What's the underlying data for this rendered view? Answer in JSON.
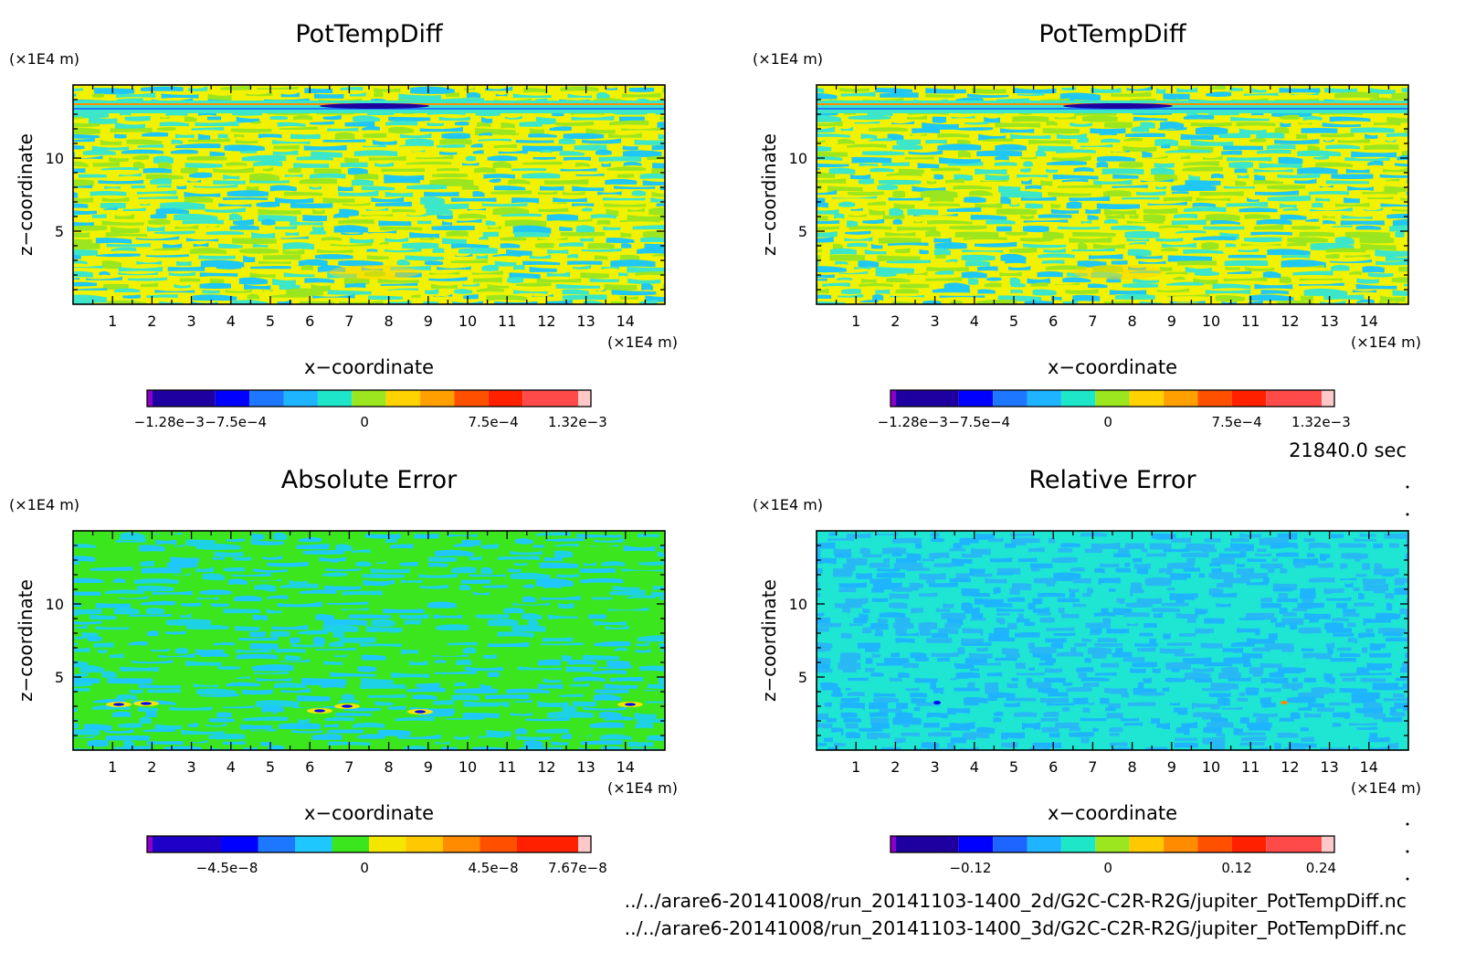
{
  "time_label": "21840.0 sec",
  "footer": {
    "file_1": "../../arare6-20141008/run_20141103-1400_2d/G2C-C2R-R2G/jupiter_PotTempDiff.nc",
    "file_2": "../../arare6-20141008/run_20141103-1400_3d/G2C-C2R-R2G/jupiter_PotTempDiff.nc"
  },
  "chart_data": [
    {
      "type": "heatmap",
      "title": "PotTempDiff",
      "xlabel": "x−coordinate",
      "ylabel": "z−coordinate",
      "x_unit": "(×1E4 m)",
      "y_unit": "(×1E4 m)",
      "xlim": [
        0,
        15
      ],
      "ylim": [
        0,
        15
      ],
      "x_ticks": [
        "1",
        "2",
        "3",
        "4",
        "5",
        "6",
        "7",
        "8",
        "9",
        "10",
        "11",
        "12",
        "13",
        "14"
      ],
      "y_ticks": [
        "5",
        "10"
      ],
      "pattern": "pot",
      "colors": [
        "#f2f200",
        "#3ce6c8",
        "#1ec8f2",
        "#9be61e"
      ],
      "colorbar": {
        "colors": [
          "#8c00c8",
          "#1e00a0",
          "#0000ff",
          "#1e78ff",
          "#1eb4ff",
          "#1ee6c8",
          "#9be61e",
          "#ffd200",
          "#ffa000",
          "#ff5000",
          "#ff2000",
          "#ff4a4a",
          "#ffc8c8"
        ],
        "tick_labels": [
          "−1.28e−3",
          "−7.5e−4",
          "0",
          "7.5e−4",
          "1.32e−3"
        ]
      }
    },
    {
      "type": "heatmap",
      "title": "PotTempDiff",
      "xlabel": "x−coordinate",
      "ylabel": "z−coordinate",
      "x_unit": "(×1E4 m)",
      "y_unit": "(×1E4 m)",
      "xlim": [
        0,
        15
      ],
      "ylim": [
        0,
        15
      ],
      "x_ticks": [
        "1",
        "2",
        "3",
        "4",
        "5",
        "6",
        "7",
        "8",
        "9",
        "10",
        "11",
        "12",
        "13",
        "14"
      ],
      "y_ticks": [
        "5",
        "10"
      ],
      "pattern": "pot",
      "colors": [
        "#f2f200",
        "#3ce6c8",
        "#1ec8f2",
        "#9be61e"
      ],
      "colorbar": {
        "colors": [
          "#8c00c8",
          "#1e00a0",
          "#0000ff",
          "#1e78ff",
          "#1eb4ff",
          "#1ee6c8",
          "#9be61e",
          "#ffd200",
          "#ffa000",
          "#ff5000",
          "#ff2000",
          "#ff4a4a",
          "#ffc8c8"
        ],
        "tick_labels": [
          "−1.28e−3",
          "−7.5e−4",
          "0",
          "7.5e−4",
          "1.32e−3"
        ]
      }
    },
    {
      "type": "heatmap",
      "title": "Absolute Error",
      "xlabel": "x−coordinate",
      "ylabel": "z−coordinate",
      "x_unit": "(×1E4 m)",
      "y_unit": "(×1E4 m)",
      "xlim": [
        0,
        15
      ],
      "ylim": [
        0,
        15
      ],
      "x_ticks": [
        "1",
        "2",
        "3",
        "4",
        "5",
        "6",
        "7",
        "8",
        "9",
        "10",
        "11",
        "12",
        "13",
        "14"
      ],
      "y_ticks": [
        "5",
        "10"
      ],
      "pattern": "abs",
      "colors": [
        "#3ce61e",
        "#1ec8ff",
        "#3ce61e",
        "#1ed2e6"
      ],
      "colorbar": {
        "colors": [
          "#8c00c8",
          "#1e00c8",
          "#0000ff",
          "#1e78ff",
          "#1ec8ff",
          "#3ce61e",
          "#f5e600",
          "#ffc800",
          "#ff8c00",
          "#ff5000",
          "#ff2000",
          "#ffc8c8"
        ],
        "tick_labels": [
          "−4.5e−8",
          "0",
          "4.5e−8",
          "7.67e−8"
        ]
      }
    },
    {
      "type": "heatmap",
      "title": "Relative Error",
      "xlabel": "x−coordinate",
      "ylabel": "z−coordinate",
      "x_unit": "(×1E4 m)",
      "y_unit": "(×1E4 m)",
      "xlim": [
        0,
        15
      ],
      "ylim": [
        0,
        15
      ],
      "x_ticks": [
        "1",
        "2",
        "3",
        "4",
        "5",
        "6",
        "7",
        "8",
        "9",
        "10",
        "11",
        "12",
        "13",
        "14"
      ],
      "y_ticks": [
        "5",
        "10"
      ],
      "pattern": "rel",
      "colors": [
        "#1ee6d2",
        "#1eb4ff",
        "#1ee6d2",
        "#28b9f5"
      ],
      "colorbar": {
        "colors": [
          "#8c00c8",
          "#1e00a0",
          "#0000ff",
          "#1e64ff",
          "#1eb4ff",
          "#1ee6c8",
          "#9be61e",
          "#ffc800",
          "#ff8c00",
          "#ff5000",
          "#ff2000",
          "#ff4a4a",
          "#ffc8c8"
        ],
        "tick_labels": [
          "−0.12",
          "0",
          "0.12",
          "0.24"
        ]
      }
    }
  ]
}
